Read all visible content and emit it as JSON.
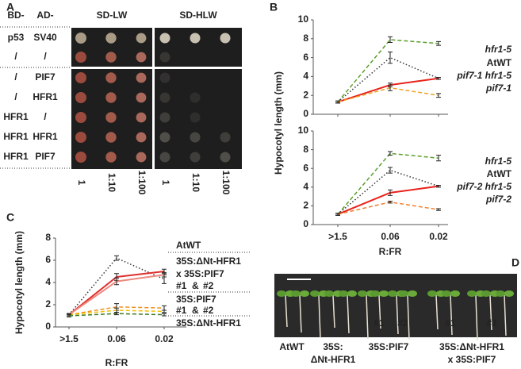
{
  "panel_labels": [
    "A",
    "B",
    "C",
    "D"
  ],
  "panel_a": {
    "headers": [
      "BD-",
      "AD-",
      "SD-LW",
      "SD-HLW"
    ],
    "rows": [
      [
        "p53",
        "SV40"
      ],
      [
        "/",
        "/"
      ],
      [
        "/",
        "PIF7"
      ],
      [
        "/",
        "HFR1"
      ],
      [
        "HFR1",
        "/"
      ],
      [
        "HFR1",
        "HFR1"
      ],
      [
        "HFR1",
        "PIF7"
      ]
    ],
    "dilutions": [
      "1",
      "1:10",
      "1:100"
    ]
  },
  "chart_data": [
    {
      "type": "line",
      "categories": [
        null,
        null,
        null
      ],
      "ylabel": "Hypocotyl length (mm)",
      "ylim": [
        0,
        10
      ],
      "yticks": [
        0,
        2,
        4,
        6,
        8,
        10
      ],
      "series": [
        {
          "name": "hfr1-5",
          "color": "#5aa02c",
          "style": "dashed",
          "values": [
            1.3,
            7.9,
            7.5
          ],
          "errors": [
            0.1,
            0.3,
            0.2
          ]
        },
        {
          "name": "AtWT",
          "color": "#333333",
          "style": "dotted",
          "values": [
            1.3,
            6.0,
            3.8
          ],
          "errors": [
            0.1,
            0.6,
            0.1
          ]
        },
        {
          "name": "pif7-1 hfr1-5",
          "color": "#e8221a",
          "style": "solid",
          "values": [
            1.3,
            3.1,
            3.8
          ],
          "errors": [
            0.1,
            0.2,
            0.1
          ]
        },
        {
          "name": "pif7-1",
          "color": "#f0a020",
          "style": "dashed",
          "values": [
            1.3,
            2.8,
            2.0
          ],
          "errors": [
            0.1,
            0.3,
            0.2
          ]
        }
      ]
    },
    {
      "type": "line",
      "categories": [
        ">1.5",
        "0.06",
        "0.02"
      ],
      "xlabel": "R:FR",
      "ylim": [
        0,
        10
      ],
      "yticks": [
        0,
        2,
        4,
        6,
        8,
        10
      ],
      "series": [
        {
          "name": "hfr1-5",
          "color": "#5aa02c",
          "style": "dashed",
          "values": [
            1.1,
            7.6,
            7.1
          ],
          "errors": [
            0.1,
            0.2,
            0.3
          ]
        },
        {
          "name": "AtWT",
          "color": "#333333",
          "style": "dotted",
          "values": [
            1.1,
            5.8,
            4.1
          ],
          "errors": [
            0.1,
            0.3,
            0.1
          ]
        },
        {
          "name": "pif7-2 hfr1-5",
          "color": "#e8221a",
          "style": "solid",
          "values": [
            1.1,
            3.4,
            4.1
          ],
          "errors": [
            0.1,
            0.3,
            0.1
          ]
        },
        {
          "name": "pif7-2",
          "color": "#f08030",
          "style": "dashed",
          "values": [
            1.1,
            2.4,
            1.6
          ],
          "errors": [
            0.1,
            0.1,
            0.1
          ]
        }
      ]
    },
    {
      "type": "line",
      "categories": [
        ">1.5",
        "0.06",
        "0.02"
      ],
      "xlabel": "R:FR",
      "ylabel": "Hypocotyl length (mm)",
      "ylim": [
        0,
        8
      ],
      "yticks": [
        0,
        2,
        4,
        6,
        8
      ],
      "legend_headers": [
        "35S:ΔNt-HFR1",
        "x 35S:PIF7",
        "35S:PIF7"
      ],
      "legend_joiner": "&",
      "series": [
        {
          "name": "AtWT",
          "color": "#333333",
          "style": "dotted",
          "values": [
            1.1,
            6.2,
            4.3
          ],
          "errors": [
            0.1,
            0.2,
            0.4
          ]
        },
        {
          "name": "#1",
          "color": "#e03030",
          "style": "solid",
          "values": [
            1.1,
            4.5,
            5.0
          ],
          "errors": [
            0.1,
            0.3,
            0.2
          ]
        },
        {
          "name": "#2",
          "color": "#ec8a80",
          "style": "solid",
          "values": [
            1.1,
            4.1,
            4.7
          ],
          "errors": [
            0.1,
            0.3,
            0.2
          ]
        },
        {
          "name": "#1",
          "color": "#f09020",
          "style": "dashed",
          "values": [
            1.1,
            1.8,
            1.7
          ],
          "errors": [
            0.1,
            0.3,
            0.2
          ]
        },
        {
          "name": "#2",
          "color": "#f0c000",
          "style": "dashed",
          "values": [
            1.1,
            1.5,
            1.4
          ],
          "errors": [
            0.1,
            0.2,
            0.1
          ]
        },
        {
          "name": "35S:ΔNt-HFR1",
          "color": "#3a7a20",
          "style": "dashed",
          "values": [
            1.0,
            1.2,
            1.1
          ],
          "errors": [
            0.1,
            0.1,
            0.1
          ]
        }
      ]
    }
  ],
  "panel_d": {
    "photo_labels": [
      "#1",
      "#2",
      "#1",
      "#2"
    ],
    "genotypes": [
      [
        "AtWT"
      ],
      [
        "35S:",
        "ΔNt-HFR1"
      ],
      [
        "35S:PIF7"
      ],
      [
        "35S:ΔNt-HFR1",
        "x 35S:PIF7"
      ]
    ]
  }
}
